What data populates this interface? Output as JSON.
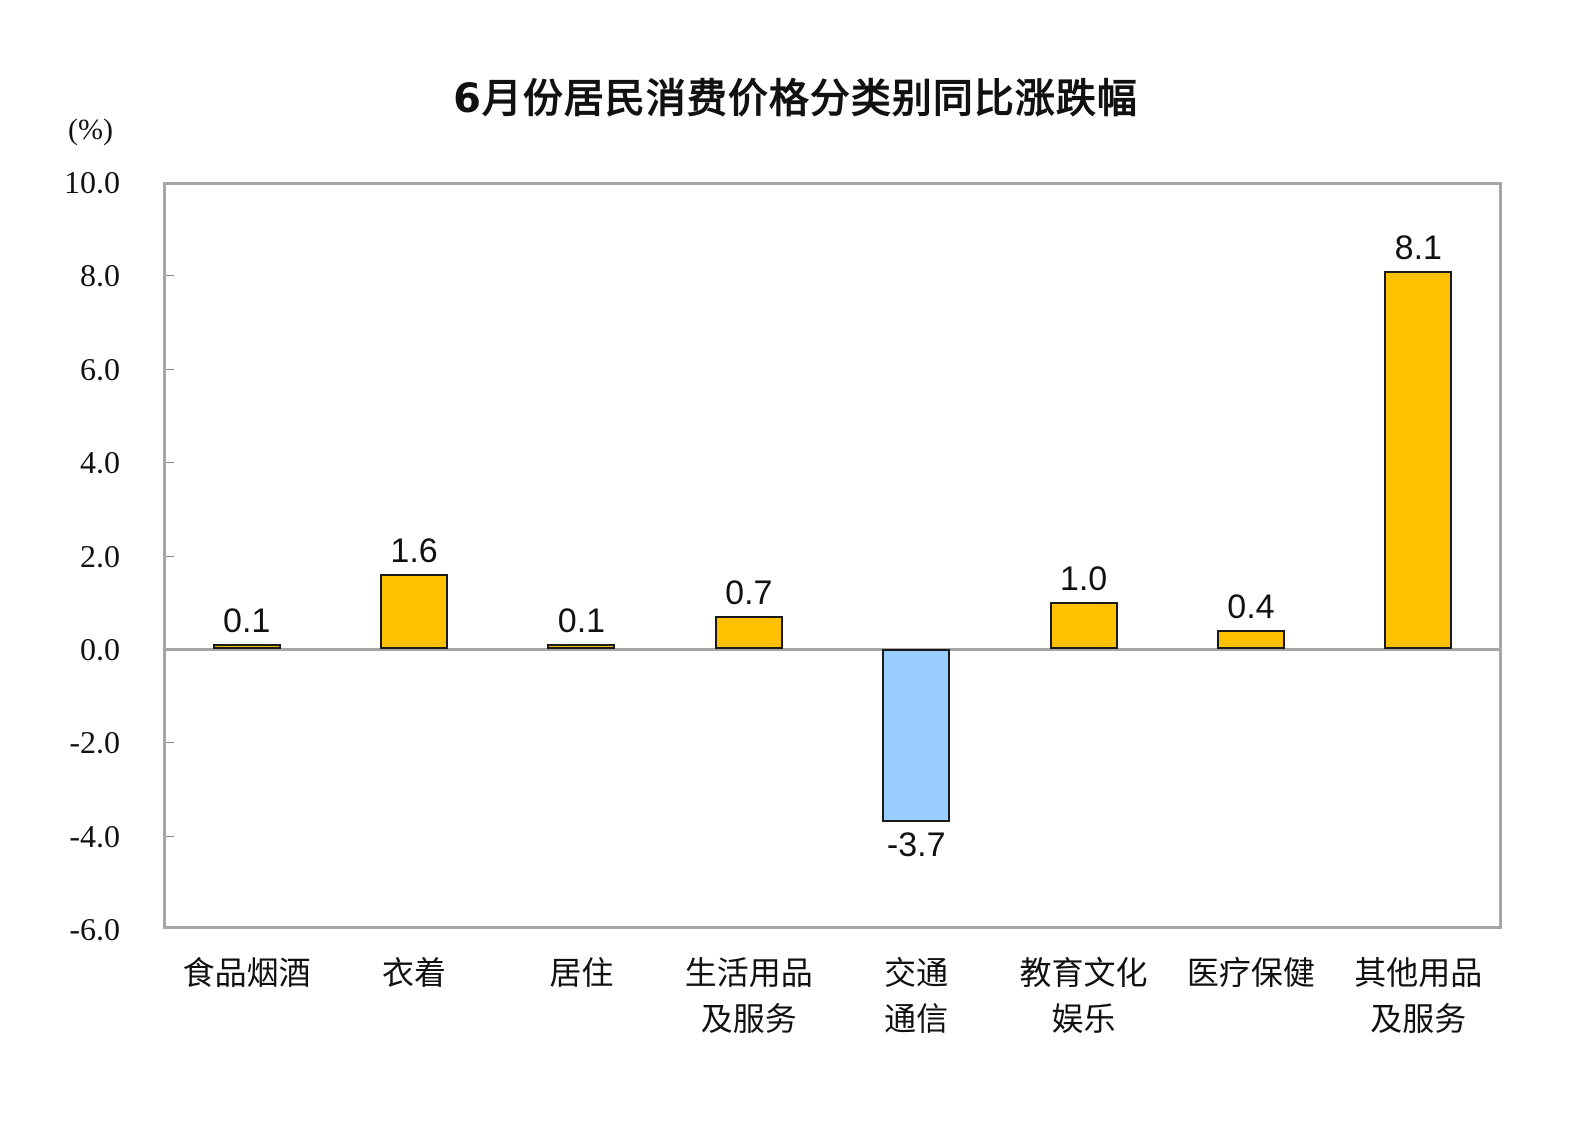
{
  "chart_data": {
    "type": "bar",
    "title": "6月份居民消费价格分类别同比涨跌幅",
    "xlabel": "",
    "ylabel": "(%)",
    "ylim": [
      -6.0,
      10.0
    ],
    "yticks": [
      "10.0",
      "8.0",
      "6.0",
      "4.0",
      "2.0",
      "0.0",
      "-2.0",
      "-4.0",
      "-6.0"
    ],
    "grid": false,
    "legend": null,
    "categories": [
      "食品烟酒",
      "衣着",
      "居住",
      "生活用品及服务",
      "交通通信",
      "教育文化娱乐",
      "医疗保健",
      "其他用品及服务"
    ],
    "category_lines": [
      [
        "食品烟酒"
      ],
      [
        "衣着"
      ],
      [
        "居住"
      ],
      [
        "生活用品",
        "及服务"
      ],
      [
        "交通",
        "通信"
      ],
      [
        "教育文化",
        "娱乐"
      ],
      [
        "医疗保健"
      ],
      [
        "其他用品",
        "及服务"
      ]
    ],
    "values": [
      0.1,
      1.6,
      0.1,
      0.7,
      -3.7,
      1.0,
      0.4,
      8.1
    ],
    "value_labels": [
      "0.1",
      "1.6",
      "0.1",
      "0.7",
      "-3.7",
      "1.0",
      "0.4",
      "8.1"
    ],
    "colors": {
      "positive": "#FFC000",
      "negative": "#99CCFF",
      "border": "#1a1a1a",
      "axis": "#a6a6a6"
    }
  }
}
